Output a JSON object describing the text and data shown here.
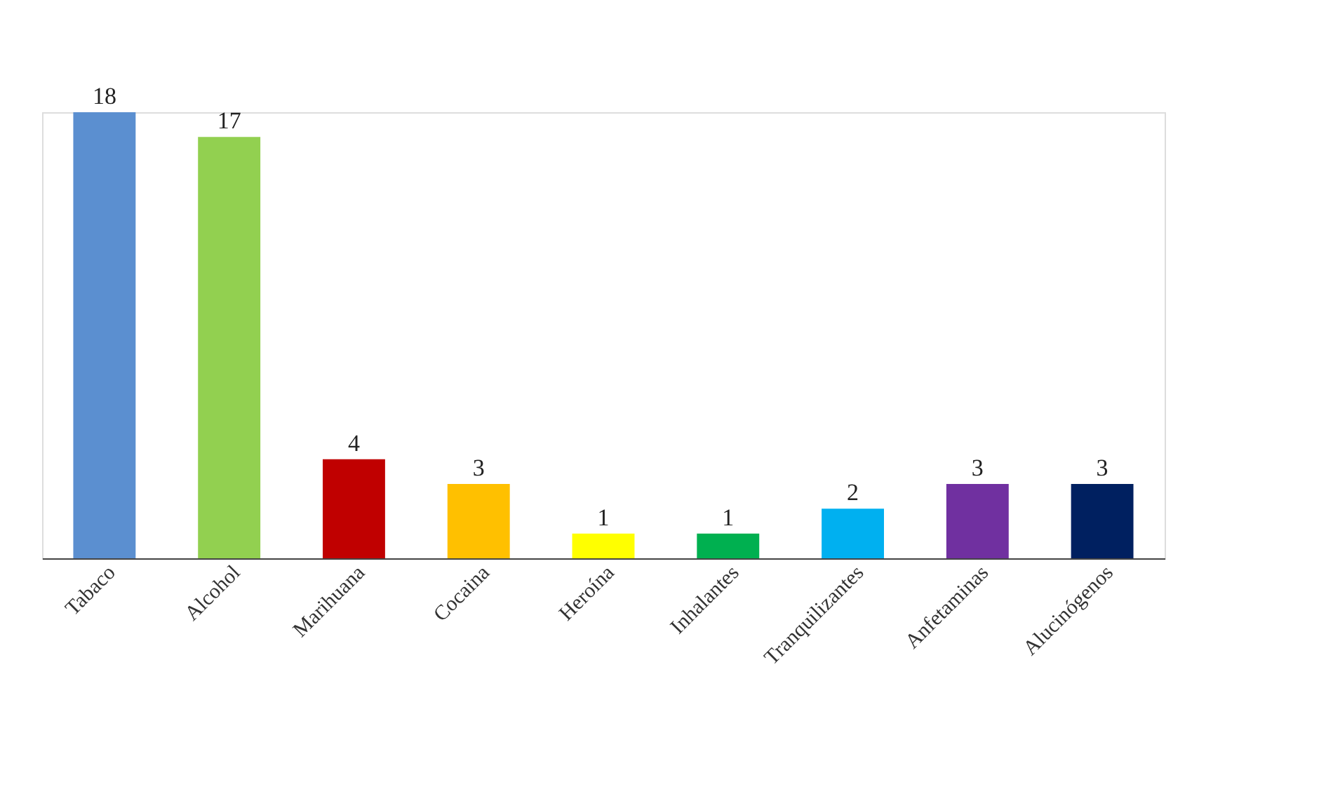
{
  "chart_data": {
    "type": "bar",
    "categories": [
      "Tabaco",
      "Alcohol",
      "Marihuana",
      "Cocaina",
      "Heroína",
      "Inhalantes",
      "Tranquilizantes",
      "Anfetaminas",
      "Alucinógenos"
    ],
    "values": [
      18,
      17,
      4,
      3,
      1,
      1,
      2,
      3,
      3
    ],
    "colors": [
      "#5b8fd0",
      "#92d050",
      "#c00000",
      "#ffc000",
      "#ffff00",
      "#00b050",
      "#00b0f0",
      "#7030a0",
      "#002060"
    ],
    "data_labels": true,
    "grid": false,
    "legend": false
  }
}
